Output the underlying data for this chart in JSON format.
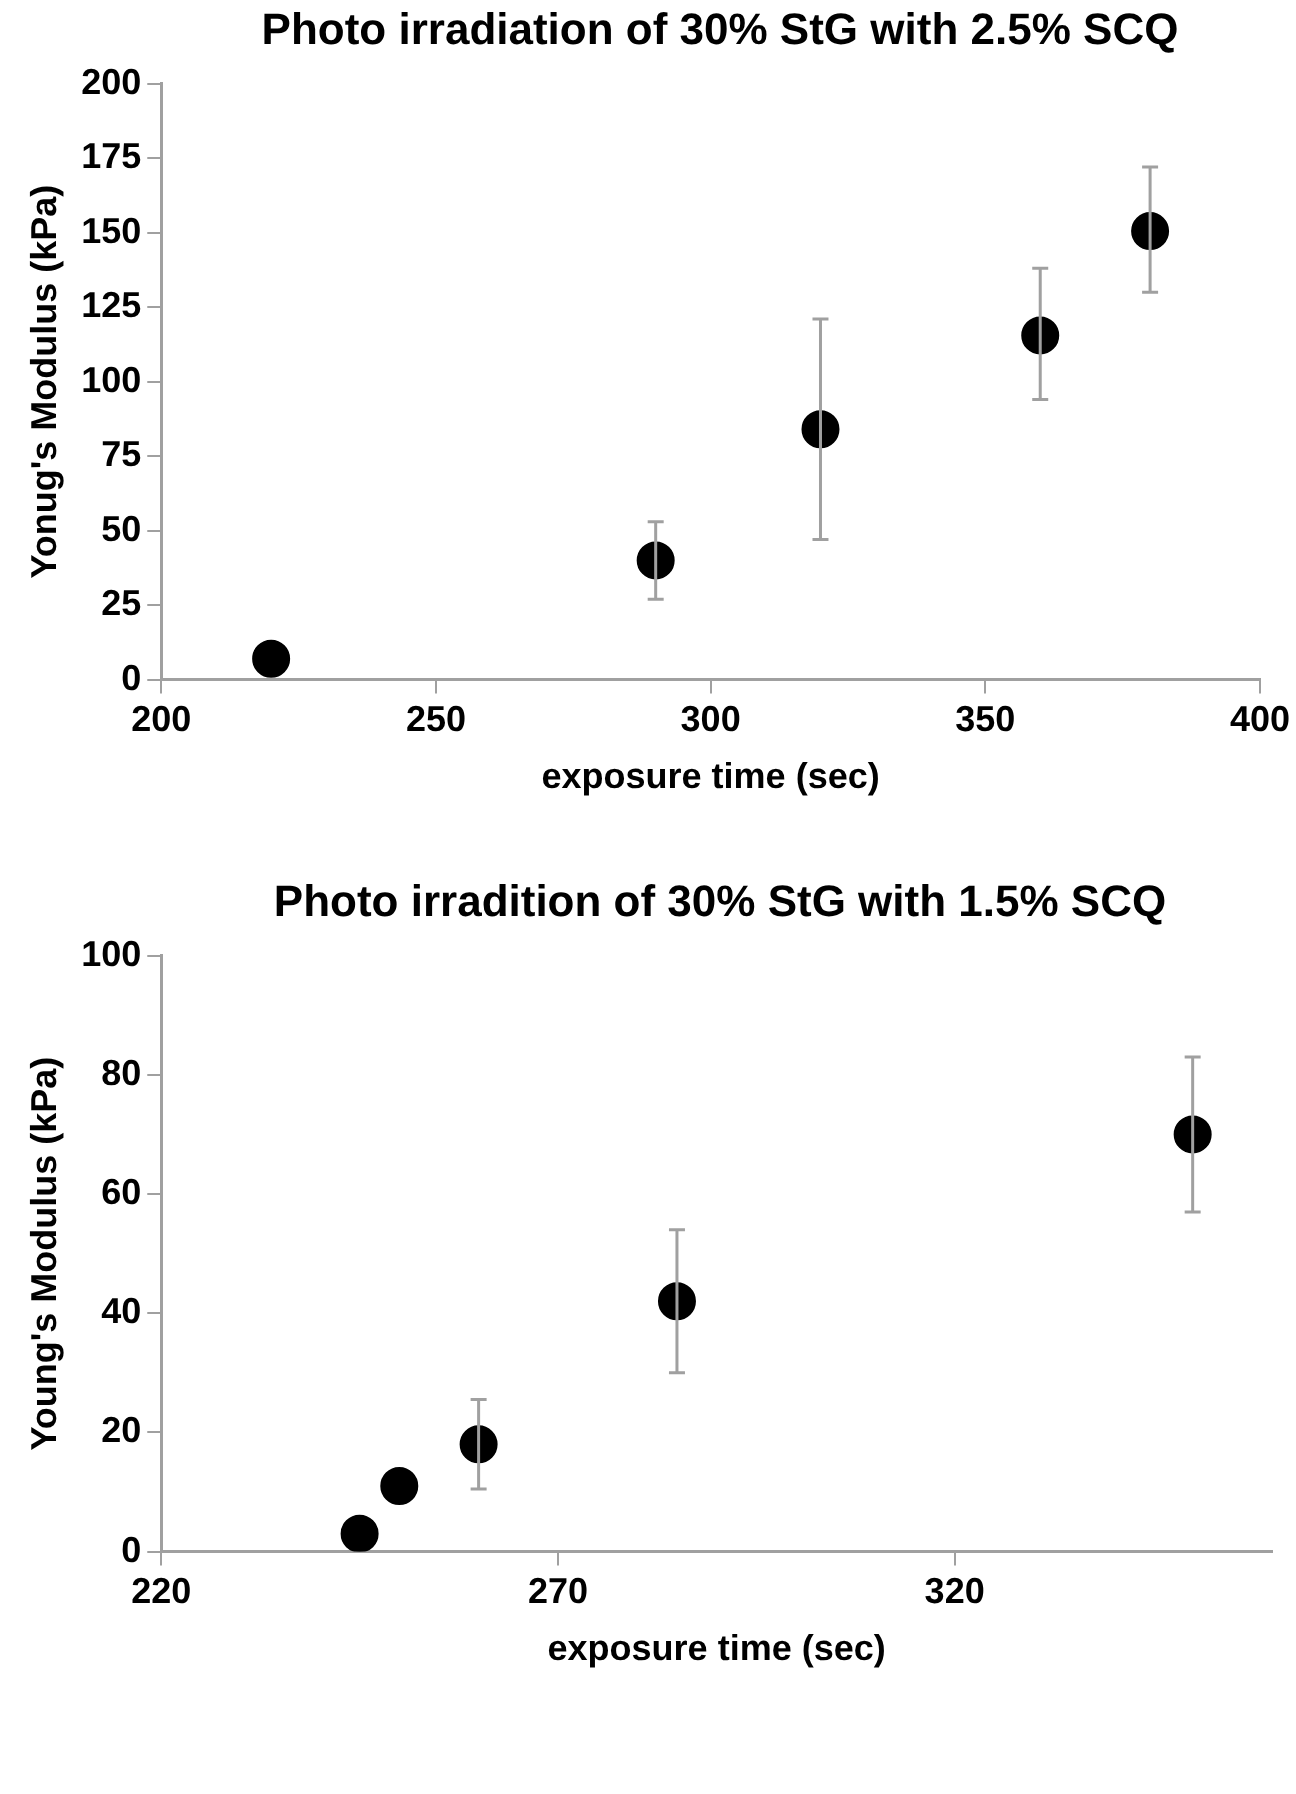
{
  "chart_data": [
    {
      "type": "scatter",
      "title": "Photo irradiation of 30% StG with 2.5% SCQ",
      "xlabel": "exposure time (sec)",
      "ylabel": "Yonug's Modulus (kPa)",
      "x": [
        220,
        290,
        320,
        360,
        380
      ],
      "values": [
        7,
        40,
        84,
        115.5,
        150.5
      ],
      "errors": [
        null,
        [
          27,
          53
        ],
        [
          47,
          121
        ],
        [
          94,
          138
        ],
        [
          130,
          172
        ]
      ],
      "color": "#000000",
      "marker": "circle",
      "grid": false,
      "legend": false,
      "xlim": [
        200,
        400
      ],
      "xticks": [
        200,
        250,
        300,
        350,
        400
      ],
      "ylim": [
        0,
        200
      ],
      "yticks": [
        0,
        25,
        50,
        75,
        100,
        125,
        150,
        175,
        200
      ]
    },
    {
      "type": "scatter",
      "title": "Photo irradition of 30% StG with 1.5% SCQ",
      "xlabel": "exposure time (sec)",
      "ylabel": "Young's Modulus (kPa)",
      "x": [
        245,
        250,
        260,
        285,
        350
      ],
      "values": [
        3,
        11,
        18,
        42,
        70
      ],
      "errors": [
        null,
        null,
        [
          10.5,
          25.5
        ],
        [
          30,
          54
        ],
        [
          57,
          83
        ]
      ],
      "color": "#000000",
      "marker": "circle",
      "grid": false,
      "legend": false,
      "xlim": [
        220,
        360
      ],
      "xticks": [
        220,
        270,
        320
      ],
      "ylim": [
        0,
        100
      ],
      "yticks": [
        0,
        20,
        40,
        60,
        80,
        100
      ]
    }
  ]
}
